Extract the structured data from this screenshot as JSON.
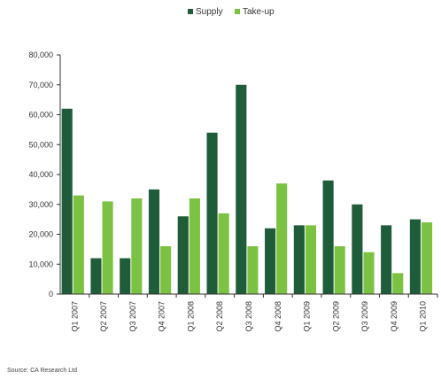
{
  "chart_data": {
    "type": "bar",
    "title": "",
    "xlabel": "",
    "ylabel": "",
    "ylim": [
      0,
      80000
    ],
    "yticks": [
      0,
      10000,
      20000,
      30000,
      40000,
      50000,
      60000,
      70000,
      80000
    ],
    "ytick_labels": [
      "0",
      "10,000",
      "20,000",
      "30,000",
      "40,000",
      "50,000",
      "60,000",
      "70,000",
      "80,000"
    ],
    "categories": [
      "Q1 2007",
      "Q2 2007",
      "Q3 2007",
      "Q4 2007",
      "Q1 2008",
      "Q2 2008",
      "Q3 2008",
      "Q4 2008",
      "Q1 2009",
      "Q2 2009",
      "Q3 2009",
      "Q4 2009",
      "Q1 2010"
    ],
    "series": [
      {
        "name": "Supply",
        "color": "#1e5c3a",
        "values": [
          62000,
          12000,
          12000,
          35000,
          26000,
          54000,
          70000,
          22000,
          23000,
          38000,
          30000,
          23000,
          25000
        ]
      },
      {
        "name": "Take-up",
        "color": "#7cc242",
        "values": [
          33000,
          31000,
          32000,
          16000,
          32000,
          27000,
          16000,
          37000,
          23000,
          16000,
          14000,
          7000,
          24000
        ]
      }
    ],
    "legend_position": "top-center",
    "grid": false,
    "source": "Source: CA Research Ltd"
  }
}
